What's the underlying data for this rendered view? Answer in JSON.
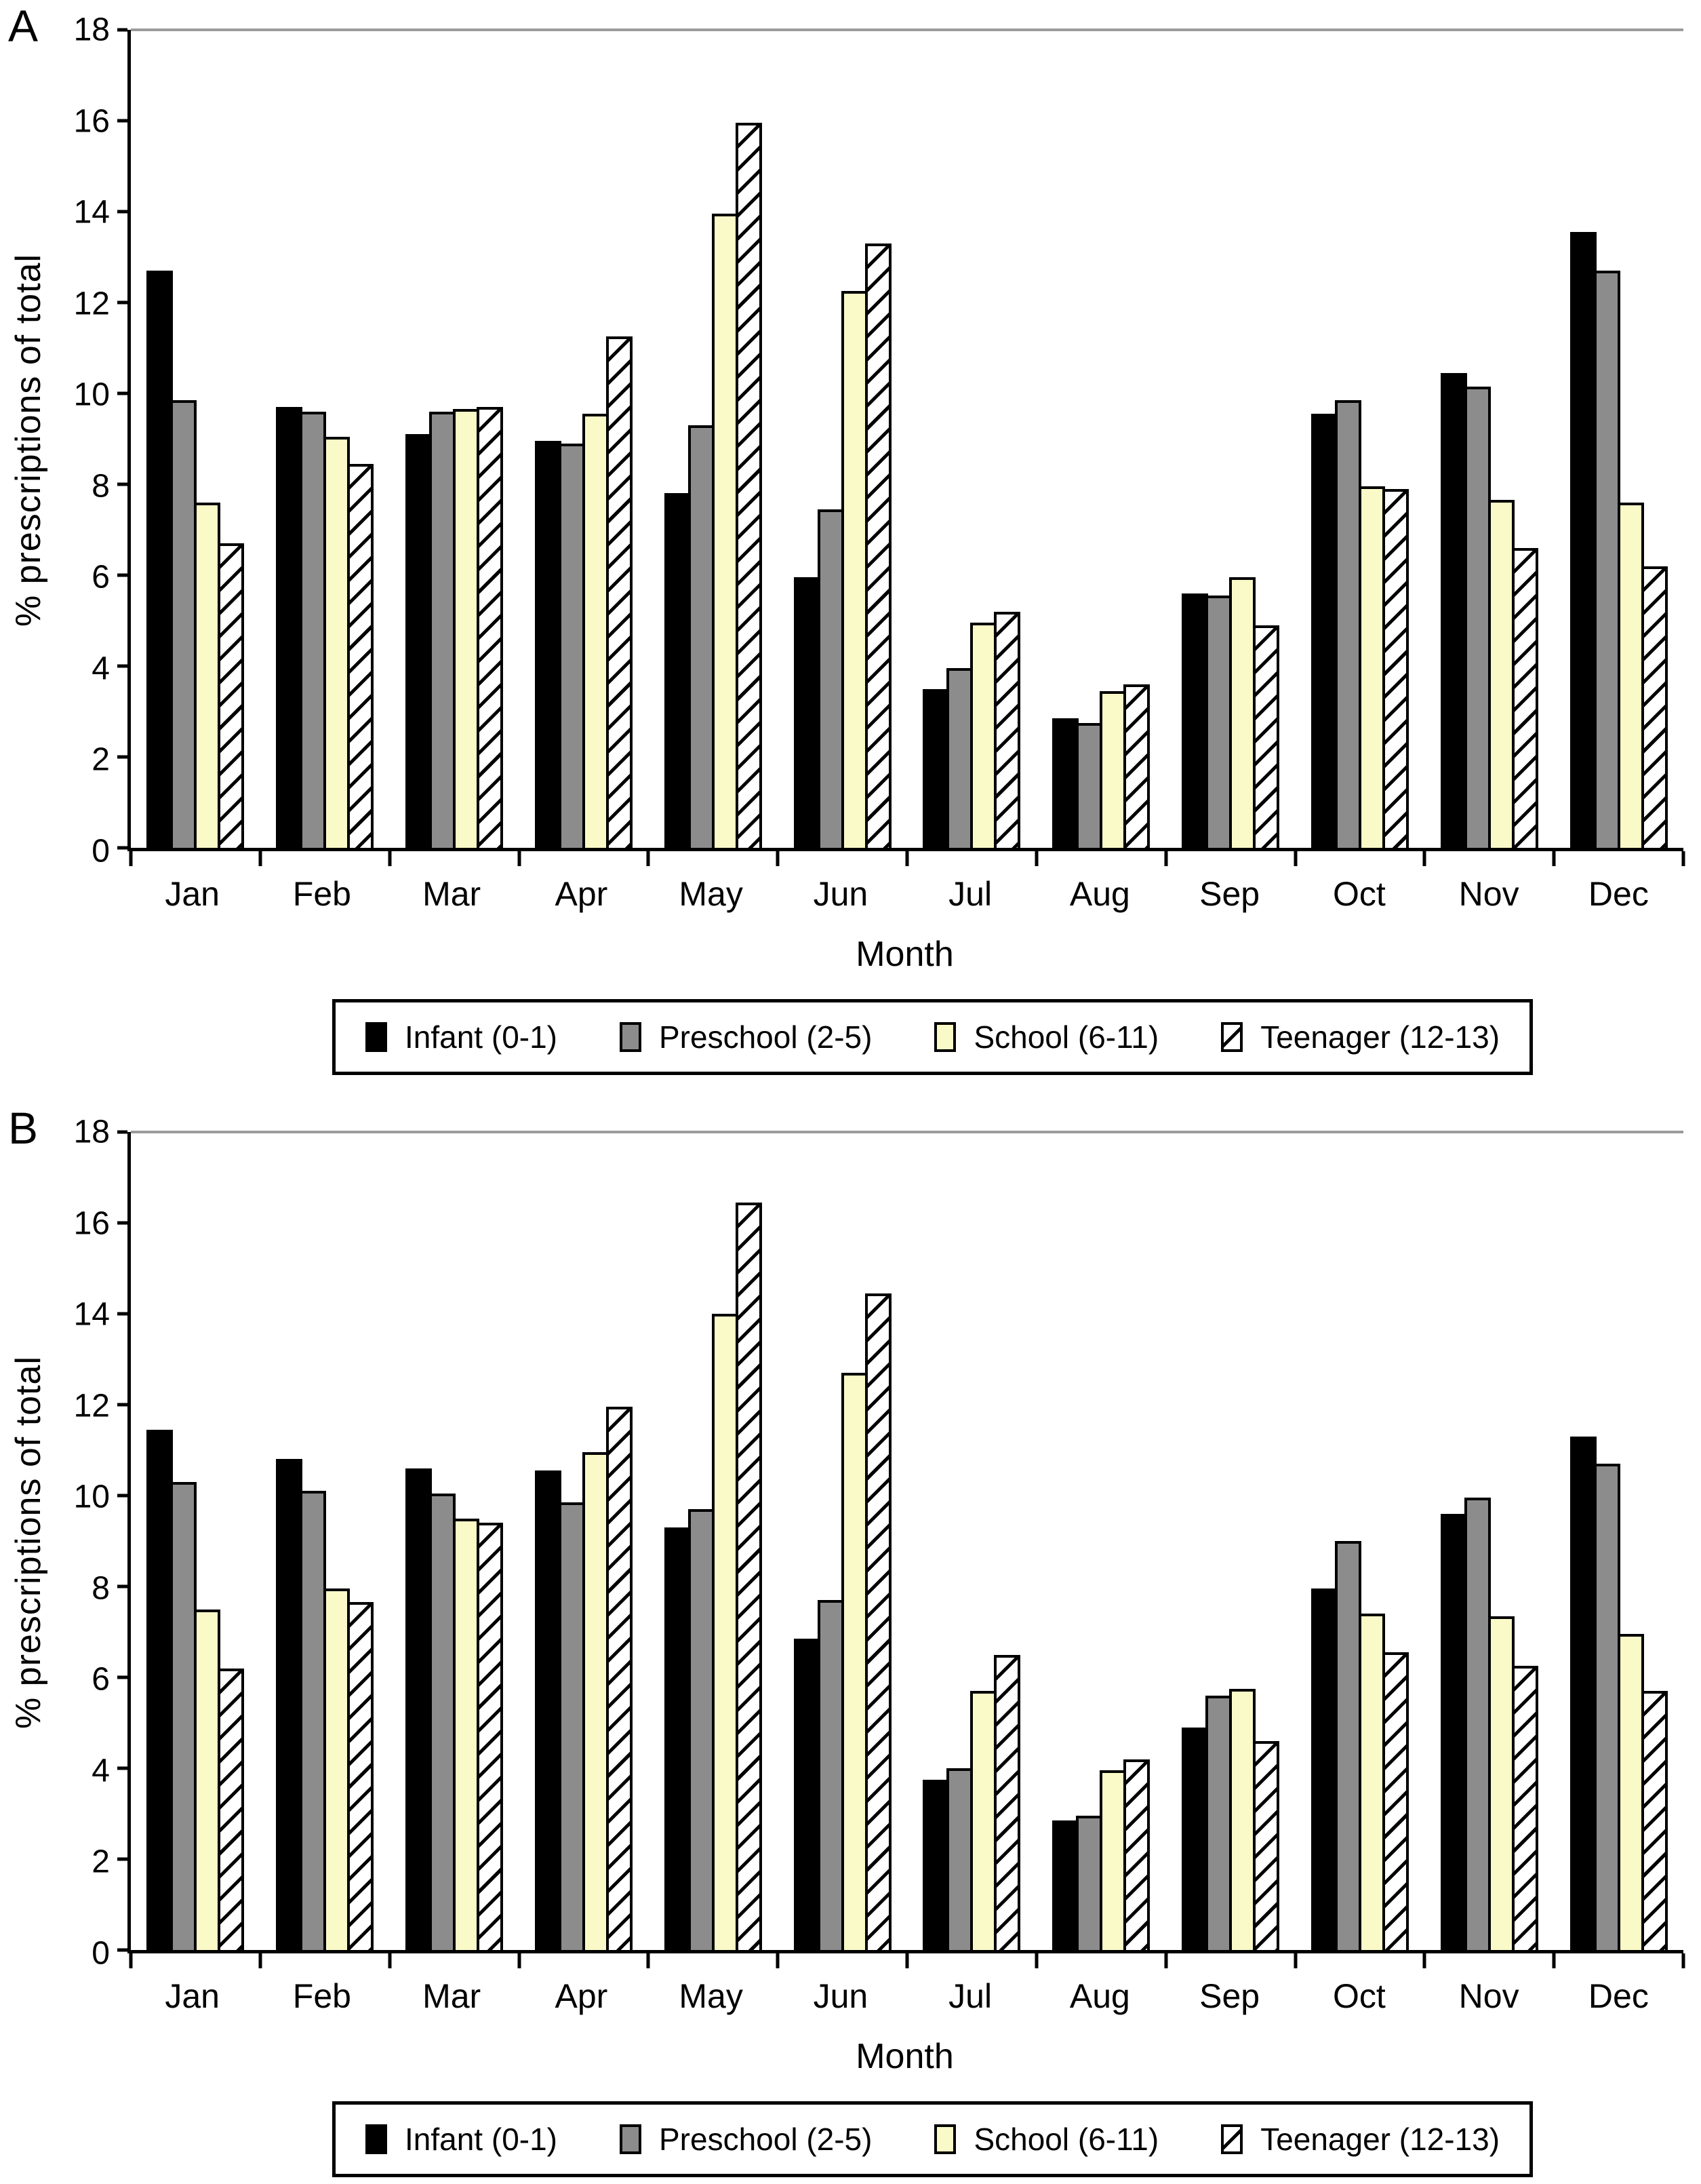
{
  "chart_data": [
    {
      "type": "bar",
      "panel_label": "A",
      "xlabel": "Month",
      "ylabel": "% prescriptions of total",
      "ylim": [
        0,
        18
      ],
      "yticks": [
        0,
        2,
        4,
        6,
        8,
        10,
        12,
        14,
        16,
        18
      ],
      "grid": "top-line-only",
      "legend_position": "bottom",
      "categories": [
        "Jan",
        "Feb",
        "Mar",
        "Apr",
        "May",
        "Jun",
        "Jul",
        "Aug",
        "Sep",
        "Oct",
        "Nov",
        "Dec"
      ],
      "series": [
        {
          "name": "Infant (0-1)",
          "color": "#000000",
          "pattern": "solid",
          "values": [
            12.7,
            9.7,
            9.1,
            8.95,
            7.8,
            5.95,
            3.5,
            2.85,
            5.6,
            9.55,
            10.45,
            13.55
          ]
        },
        {
          "name": "Preschool (2-5)",
          "color": "#8c8c8c",
          "pattern": "solid",
          "values": [
            9.85,
            9.6,
            9.6,
            8.9,
            9.3,
            7.45,
            3.95,
            2.75,
            5.55,
            9.85,
            10.15,
            12.7
          ]
        },
        {
          "name": "School (6-11)",
          "color": "#fafac8",
          "pattern": "solid",
          "values": [
            7.6,
            9.05,
            9.65,
            9.55,
            13.95,
            12.25,
            4.95,
            3.45,
            5.95,
            7.95,
            7.65,
            7.6
          ]
        },
        {
          "name": "Teenager (12-13)",
          "color": "#ffffff",
          "pattern": "diagonal-hatch",
          "values": [
            6.7,
            8.45,
            9.7,
            11.25,
            15.95,
            13.3,
            5.2,
            3.6,
            4.9,
            7.9,
            6.6,
            6.2
          ]
        }
      ]
    },
    {
      "type": "bar",
      "panel_label": "B",
      "xlabel": "Month",
      "ylabel": "% prescriptions of total",
      "ylim": [
        0,
        18
      ],
      "yticks": [
        0,
        2,
        4,
        6,
        8,
        10,
        12,
        14,
        16,
        18
      ],
      "grid": "top-line-only",
      "legend_position": "bottom",
      "categories": [
        "Jan",
        "Feb",
        "Mar",
        "Apr",
        "May",
        "Jun",
        "Jul",
        "Aug",
        "Sep",
        "Oct",
        "Nov",
        "Dec"
      ],
      "series": [
        {
          "name": "Infant (0-1)",
          "color": "#000000",
          "pattern": "solid",
          "values": [
            11.45,
            10.8,
            10.6,
            10.55,
            9.3,
            6.85,
            3.75,
            2.85,
            4.9,
            7.95,
            9.6,
            11.3
          ]
        },
        {
          "name": "Preschool (2-5)",
          "color": "#8c8c8c",
          "pattern": "solid",
          "values": [
            10.3,
            10.1,
            10.05,
            9.85,
            9.7,
            7.7,
            4.0,
            2.95,
            5.6,
            9.0,
            9.95,
            10.7
          ]
        },
        {
          "name": "School (6-11)",
          "color": "#fafac8",
          "pattern": "solid",
          "values": [
            7.5,
            7.95,
            9.5,
            10.95,
            14.0,
            12.7,
            5.7,
            3.95,
            5.75,
            7.4,
            7.35,
            6.95
          ]
        },
        {
          "name": "Teenager (12-13)",
          "color": "#ffffff",
          "pattern": "diagonal-hatch",
          "values": [
            6.2,
            7.65,
            9.4,
            11.95,
            16.45,
            14.45,
            6.5,
            4.2,
            4.6,
            6.55,
            6.25,
            5.7
          ]
        }
      ]
    }
  ]
}
